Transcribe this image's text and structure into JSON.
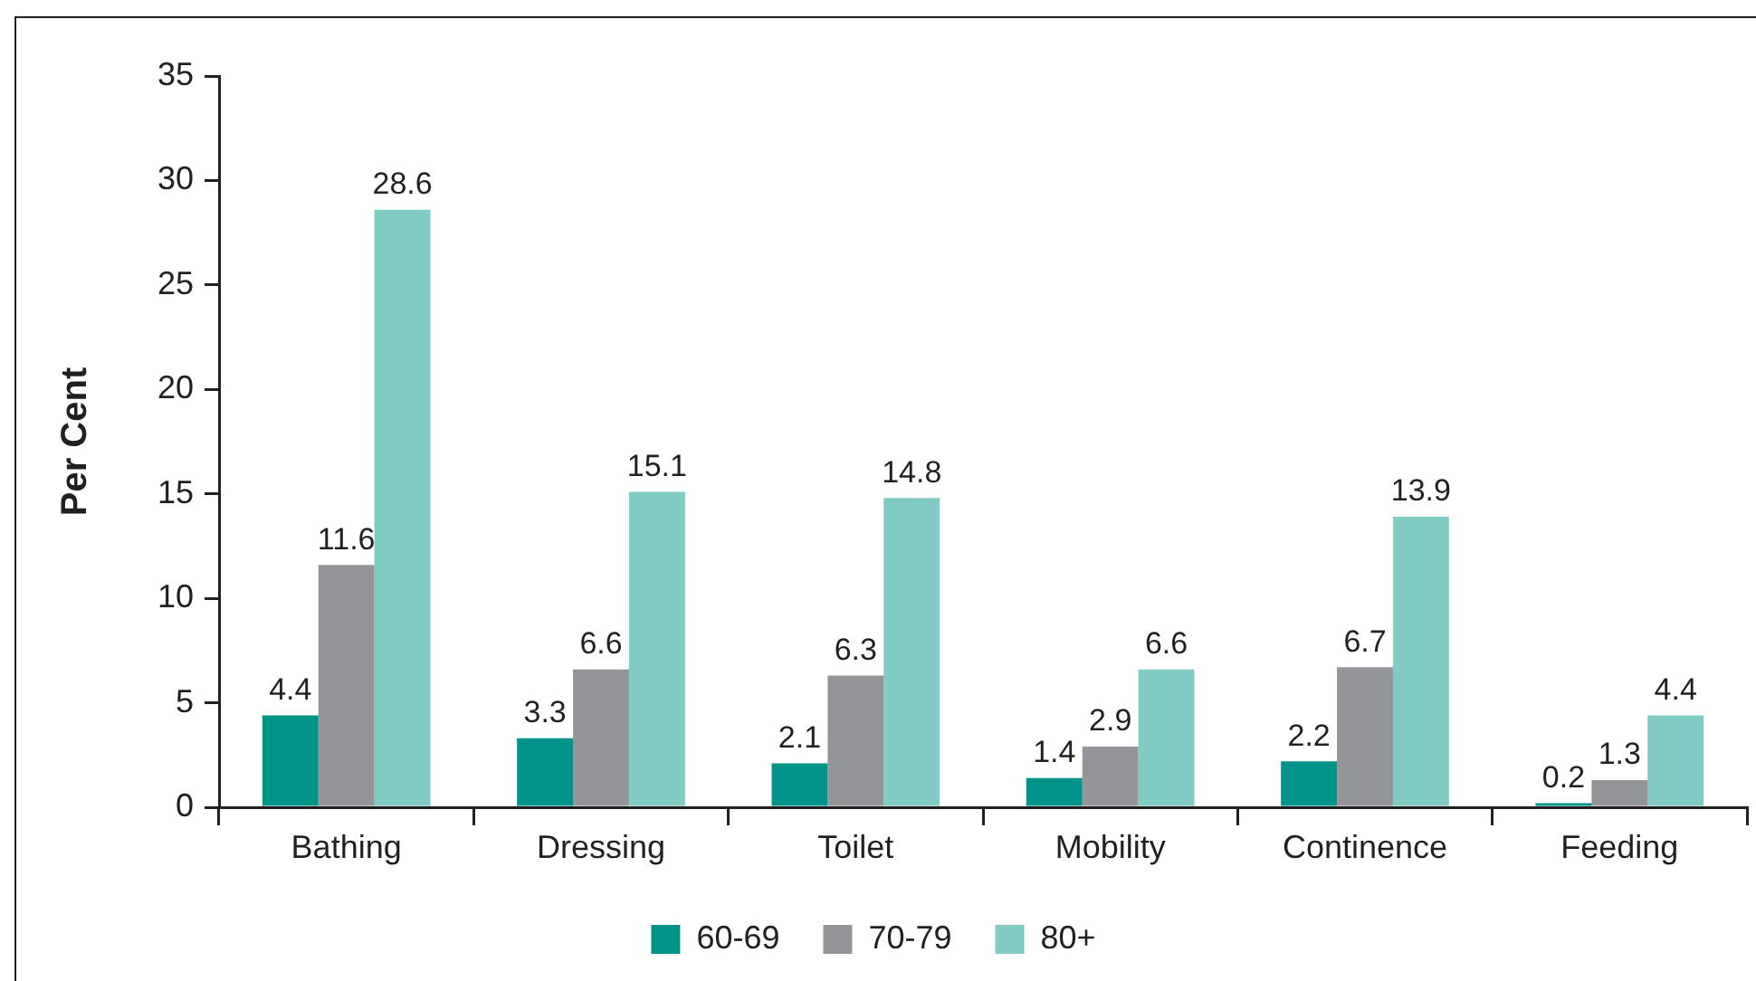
{
  "chart_data": {
    "type": "bar",
    "categories": [
      "Bathing",
      "Dressing",
      "Toilet",
      "Mobility",
      "Continence",
      "Feeding"
    ],
    "series": [
      {
        "name": "60-69",
        "color": "#00938a",
        "values": [
          4.4,
          3.3,
          2.1,
          1.4,
          2.2,
          0.2
        ]
      },
      {
        "name": "70-79",
        "color": "#939598",
        "values": [
          11.6,
          6.6,
          6.3,
          2.9,
          6.7,
          1.3
        ]
      },
      {
        "name": "80+",
        "color": "#80cbc4",
        "values": [
          28.6,
          15.1,
          14.8,
          6.6,
          13.9,
          4.4
        ]
      }
    ],
    "ylabel": "Per Cent",
    "ylim": [
      0,
      35
    ],
    "yticks": [
      0,
      5,
      10,
      15,
      20,
      25,
      30,
      35
    ],
    "grid": false,
    "legend": "bottom",
    "data_labels": true
  }
}
